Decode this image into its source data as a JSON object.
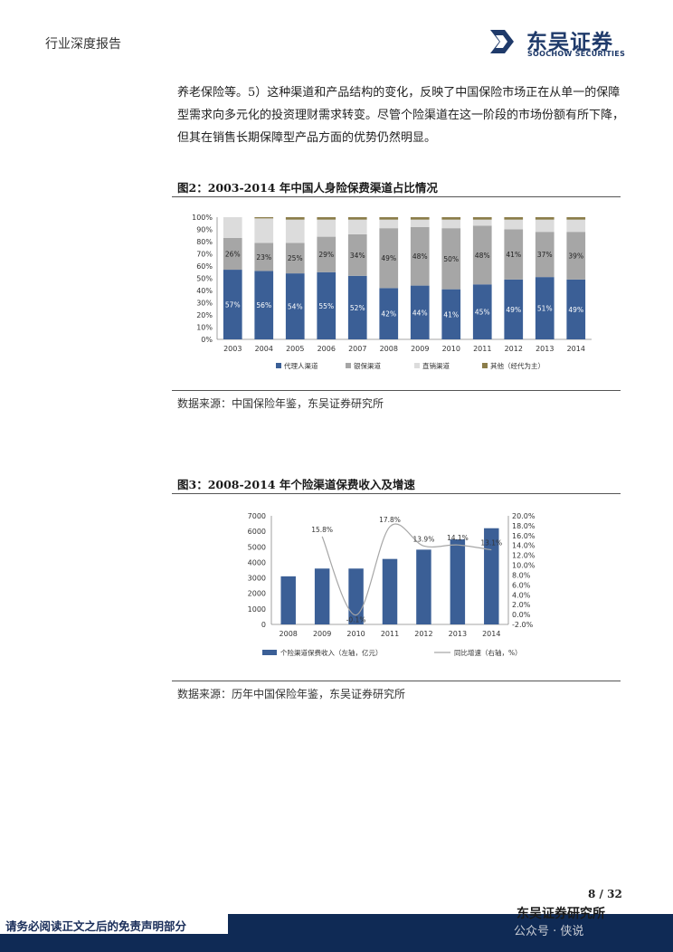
{
  "header": {
    "left_title": "行业深度报告"
  },
  "logo": {
    "cn": "东吴证券",
    "en": "SOOCHOW SECURITIES",
    "brand_color": "#1f3a6a"
  },
  "paragraph": [
    "养老保险等。5）这种渠道和产品结构的变化，反映了中国保险市场正在从单一的保障",
    "型需求向多元化的投资理财需求转变。尽管个险渠道在这一阶段的市场份额有所下降，",
    "但其在销售长期保障型产品方面的优势仍然明显。"
  ],
  "figure2": {
    "title": "图2：2003-2014 年中国人身险保费渠道占比情况",
    "source": "数据来源：中国保险年鉴，东吴证券研究所"
  },
  "figure3": {
    "title": "图3：2008-2014 年个险渠道保费收入及增速",
    "source": "数据来源：历年中国保险年鉴，东吴证券研究所"
  },
  "footer": {
    "page": "8  /  32",
    "brand": "东吴证券研究所",
    "note": "请务必阅读正文之后的免责声明部分",
    "watermark": "公众号 · 侠说"
  },
  "chart_data": [
    {
      "type": "bar",
      "stacked": true,
      "categories": [
        "2003",
        "2004",
        "2005",
        "2006",
        "2007",
        "2008",
        "2009",
        "2010",
        "2011",
        "2012",
        "2013",
        "2014"
      ],
      "series": [
        {
          "name": "代理人渠道",
          "color": "#3b5f96",
          "values": [
            57,
            56,
            54,
            55,
            52,
            42,
            44,
            41,
            45,
            49,
            51,
            49
          ],
          "labels": [
            "57%",
            "56%",
            "54%",
            "55%",
            "52%",
            "42%",
            "44%",
            "41%",
            "45%",
            "49%",
            "51%",
            "49%"
          ]
        },
        {
          "name": "银保渠道",
          "color": "#a6a6a6",
          "values": [
            26,
            23,
            25,
            29,
            34,
            49,
            48,
            50,
            48,
            41,
            37,
            39
          ],
          "labels": [
            "26%",
            "23%",
            "25%",
            "29%",
            "34%",
            "49%",
            "48%",
            "50%",
            "48%",
            "41%",
            "37%",
            "39%"
          ]
        },
        {
          "name": "直销渠道",
          "color": "#dcdcdc",
          "values": [
            17,
            20,
            19,
            14,
            12,
            7,
            6,
            7,
            5,
            8,
            10,
            10
          ]
        },
        {
          "name": "其他（经代为主）",
          "color": "#8b7d4a",
          "values": [
            0,
            1,
            2,
            2,
            2,
            2,
            2,
            2,
            2,
            2,
            2,
            2
          ]
        }
      ],
      "yticks": [
        "0%",
        "10%",
        "20%",
        "30%",
        "40%",
        "50%",
        "60%",
        "70%",
        "80%",
        "90%",
        "100%"
      ],
      "ylim": [
        0,
        100
      ],
      "legend": "bottom"
    },
    {
      "type": "bar+line",
      "categories": [
        "2008",
        "2009",
        "2010",
        "2011",
        "2012",
        "2013",
        "2014"
      ],
      "bar_series": {
        "name": "个险渠道保费收入（左轴，亿元）",
        "color": "#3b5f96",
        "values": [
          3100,
          3600,
          3600,
          4220,
          4820,
          5480,
          6200
        ]
      },
      "line_series": {
        "name": "同比增速（右轴，%）",
        "color": "#a6a6a6",
        "values": [
          null,
          15.8,
          -0.1,
          17.8,
          13.9,
          14.1,
          13.1
        ],
        "labels": [
          "",
          "15.8%",
          "-0.1%",
          "17.8%",
          "13.9%",
          "14.1%",
          "13.1%"
        ]
      },
      "yticks_left": [
        "0",
        "1000",
        "2000",
        "3000",
        "4000",
        "5000",
        "6000",
        "7000"
      ],
      "ylim_left": [
        0,
        7000
      ],
      "yticks_right": [
        "-2.0%",
        "0.0%",
        "2.0%",
        "4.0%",
        "6.0%",
        "8.0%",
        "10.0%",
        "12.0%",
        "14.0%",
        "16.0%",
        "18.0%",
        "20.0%"
      ],
      "ylim_right": [
        -2,
        20
      ],
      "legend": "bottom"
    }
  ]
}
